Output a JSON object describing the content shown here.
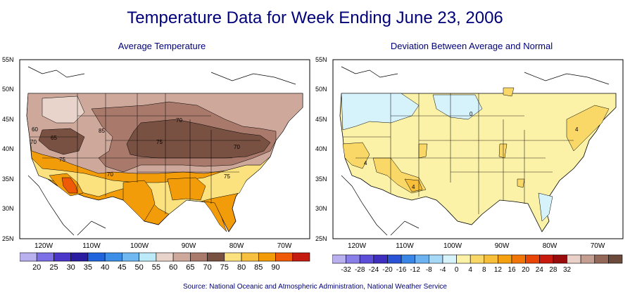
{
  "page": {
    "title": "Temperature Data for Week Ending June 23, 2006",
    "source": "Source:  National Oceanic and Atmospheric Administration, National Weather Service"
  },
  "maps": [
    {
      "subtitle": "Average Temperature",
      "lat_labels": [
        "55N",
        "50N",
        "45N",
        "40N",
        "35N",
        "30N",
        "25N"
      ],
      "lon_labels": [
        "120W",
        "110W",
        "100W",
        "90W",
        "80W",
        "70W"
      ],
      "contour_labels": [
        "60",
        "65",
        "70",
        "85",
        "70",
        "75",
        "75",
        "70",
        "70",
        "75",
        "75"
      ],
      "legend": {
        "colors": [
          "#b9b0ef",
          "#7d6fe6",
          "#4a37c9",
          "#2a1ca0",
          "#1f63dd",
          "#3d8ee7",
          "#6fb8f2",
          "#bdeaf9",
          "#e9d4cc",
          "#cfa89c",
          "#a97a6b",
          "#795143",
          "#fbe27e",
          "#f7c040",
          "#f39c09",
          "#ee5a07",
          "#c41a10"
        ],
        "labels": [
          "20",
          "25",
          "30",
          "35",
          "40",
          "45",
          "50",
          "55",
          "60",
          "65",
          "70",
          "75",
          "80",
          "85",
          "90"
        ]
      }
    },
    {
      "subtitle": "Deviation Between Average and Normal",
      "lat_labels": [
        "55N",
        "50N",
        "45N",
        "40N",
        "35N",
        "30N",
        "25N"
      ],
      "lon_labels": [
        "120W",
        "110W",
        "100W",
        "90W",
        "80W",
        "70W"
      ],
      "contour_labels": [
        "4",
        "4",
        "0",
        "4"
      ],
      "legend": {
        "colors": [
          "#b9b0ef",
          "#8a7ee8",
          "#5d4ed9",
          "#3f2fc0",
          "#2a52d5",
          "#3a86e6",
          "#6cb2f1",
          "#a6d8f7",
          "#d6f2fb",
          "#fbf2a8",
          "#f9d868",
          "#f7bf3a",
          "#f5a011",
          "#f27508",
          "#e84507",
          "#c91a10",
          "#9a0c0b",
          "#e9d1c9",
          "#c39e91",
          "#936859",
          "#6b4a3c"
        ],
        "labels": [
          "-32",
          "-28",
          "-24",
          "-20",
          "-16",
          "-12",
          "-8",
          "-4",
          "0",
          "4",
          "8",
          "12",
          "16",
          "20",
          "24",
          "28",
          "32"
        ]
      }
    }
  ]
}
